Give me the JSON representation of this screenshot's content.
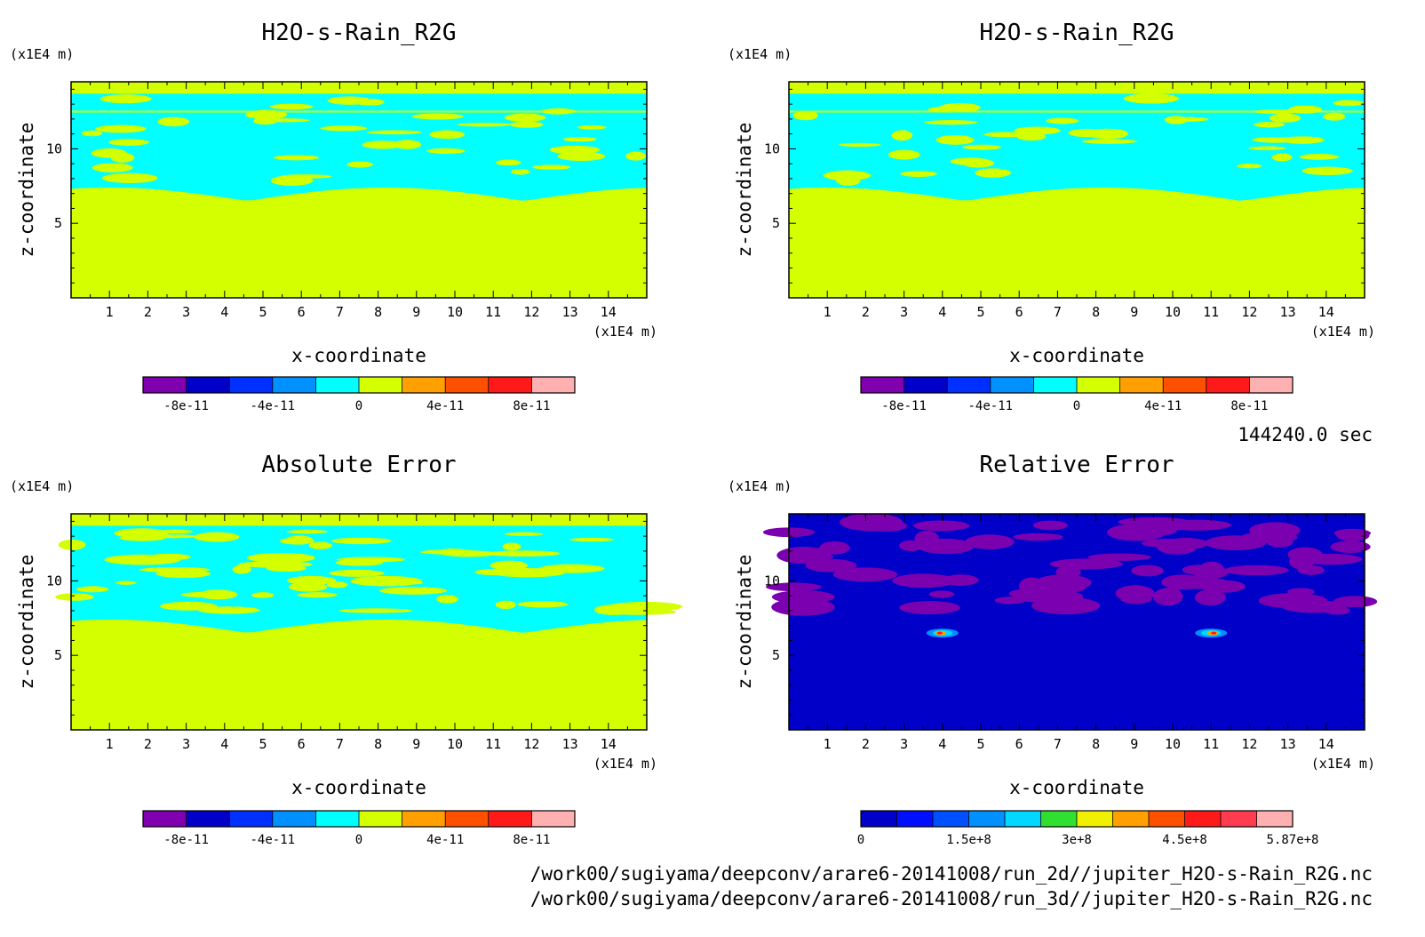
{
  "colors": {
    "background": "#ffffff",
    "field_positive": "#d4ff00",
    "field_zero": "#00ffff",
    "rel_background": "#0000c8",
    "rel_band": "#7a00b0"
  },
  "time_label": "144240.0 sec",
  "footer_lines": [
    "/work00/sugiyama/deepconv/arare6-20141008/run_2d//jupiter_H2O-s-Rain_R2G.nc",
    "/work00/sugiyama/deepconv/arare6-20141008/run_3d//jupiter_H2O-s-Rain_R2G.nc"
  ],
  "chart_data": [
    {
      "type": "heatmap",
      "title": "H2O-s-Rain_R2G",
      "xlabel": "x-coordinate",
      "ylabel": "z-coordinate",
      "x_unit": "(x1E4 m)",
      "y_unit": "(x1E4 m)",
      "xlim": [
        0,
        15
      ],
      "ylim": [
        0,
        14.5
      ],
      "xticks": [
        "1",
        "2",
        "3",
        "4",
        "5",
        "6",
        "7",
        "8",
        "9",
        "10",
        "11",
        "12",
        "13",
        "14"
      ],
      "yticks": [
        "5",
        "10"
      ],
      "colorbar": {
        "colors": [
          "#8000b0",
          "#0000c8",
          "#0030ff",
          "#0090ff",
          "#00ffff",
          "#d4ff00",
          "#ffa000",
          "#ff5000",
          "#ff1a1a",
          "#ffb0b0"
        ],
        "tick_labels": [
          "-8e-11",
          "-4e-11",
          "0",
          "4e-11",
          "8e-11"
        ]
      },
      "field": {
        "surface_level": 6.5,
        "variant": "run_2d"
      }
    },
    {
      "type": "heatmap",
      "title": "H2O-s-Rain_R2G",
      "xlabel": "x-coordinate",
      "ylabel": "z-coordinate",
      "x_unit": "(x1E4 m)",
      "y_unit": "(x1E4 m)",
      "xlim": [
        0,
        15
      ],
      "ylim": [
        0,
        14.5
      ],
      "xticks": [
        "1",
        "2",
        "3",
        "4",
        "5",
        "6",
        "7",
        "8",
        "9",
        "10",
        "11",
        "12",
        "13",
        "14"
      ],
      "yticks": [
        "5",
        "10"
      ],
      "colorbar": {
        "colors": [
          "#8000b0",
          "#0000c8",
          "#0030ff",
          "#0090ff",
          "#00ffff",
          "#d4ff00",
          "#ffa000",
          "#ff5000",
          "#ff1a1a",
          "#ffb0b0"
        ],
        "tick_labels": [
          "-8e-11",
          "-4e-11",
          "0",
          "4e-11",
          "8e-11"
        ]
      },
      "field": {
        "surface_level": 6.5,
        "variant": "run_3d"
      }
    },
    {
      "type": "heatmap",
      "title": "Absolute Error",
      "xlabel": "x-coordinate",
      "ylabel": "z-coordinate",
      "x_unit": "(x1E4 m)",
      "y_unit": "(x1E4 m)",
      "xlim": [
        0,
        15
      ],
      "ylim": [
        0,
        14.5
      ],
      "xticks": [
        "1",
        "2",
        "3",
        "4",
        "5",
        "6",
        "7",
        "8",
        "9",
        "10",
        "11",
        "12",
        "13",
        "14"
      ],
      "yticks": [
        "5",
        "10"
      ],
      "colorbar": {
        "colors": [
          "#8000b0",
          "#0000c8",
          "#0030ff",
          "#0090ff",
          "#00ffff",
          "#d4ff00",
          "#ffa000",
          "#ff5000",
          "#ff1a1a",
          "#ffb0b0"
        ],
        "tick_labels": [
          "-8e-11",
          "-4e-11",
          "0",
          "4e-11",
          "8e-11"
        ]
      },
      "field": {
        "surface_level": 6.5,
        "variant": "abs_error"
      }
    },
    {
      "type": "heatmap",
      "title": "Relative Error",
      "xlabel": "x-coordinate",
      "ylabel": "z-coordinate",
      "x_unit": "(x1E4 m)",
      "y_unit": "(x1E4 m)",
      "xlim": [
        0,
        15
      ],
      "ylim": [
        0,
        14.5
      ],
      "xticks": [
        "1",
        "2",
        "3",
        "4",
        "5",
        "6",
        "7",
        "8",
        "9",
        "10",
        "11",
        "12",
        "13",
        "14"
      ],
      "yticks": [
        "5",
        "10"
      ],
      "colorbar": {
        "colors": [
          "#0000c8",
          "#0010ff",
          "#0050ff",
          "#0090ff",
          "#00d8ff",
          "#30e030",
          "#f0f000",
          "#ffa000",
          "#ff5000",
          "#ff1a1a",
          "#ff3c50",
          "#ffb0b0"
        ],
        "tick_labels": [
          "0",
          "1.5e+8",
          "3e+8",
          "4.5e+8",
          "5.87e+8"
        ],
        "tick_values": [
          0,
          150000000,
          300000000,
          450000000,
          587000000
        ],
        "vmax": 600000000
      },
      "field": {
        "hotspots_x": [
          4.0,
          11.0
        ],
        "hotspot_z": 6.5,
        "variant": "rel_error"
      }
    }
  ]
}
